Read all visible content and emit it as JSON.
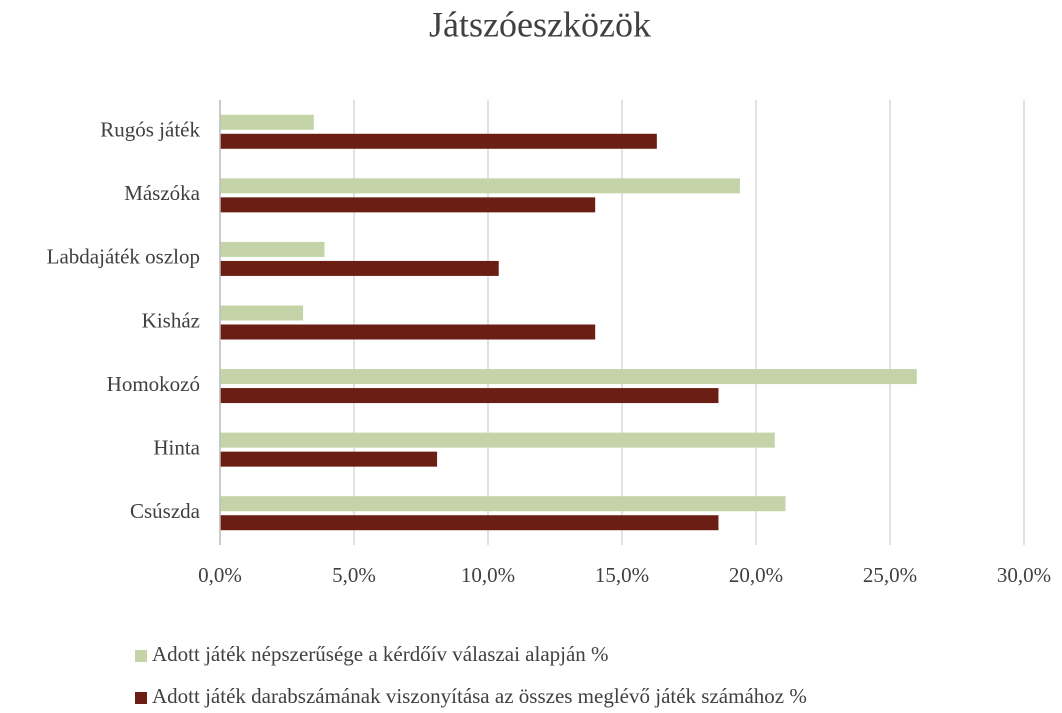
{
  "chart_data": {
    "type": "hbar",
    "title": "Játszóeszközök",
    "categories": [
      "Rugós játék",
      "Mászóka",
      "Labdajáték oszlop",
      "Kisház",
      "Homokozó",
      "Hinta",
      "Csúszda"
    ],
    "series": [
      {
        "name": "Adott játék népszerűsége a kérdőív válaszai alapján %",
        "color": "#c4d4a8",
        "values": [
          3.5,
          19.4,
          3.9,
          3.1,
          26.0,
          20.7,
          21.1
        ]
      },
      {
        "name": "Adott játék darabszámának viszonyítása az összes meglévő játék számához  %",
        "color": "#6b1f14",
        "values": [
          16.3,
          14.0,
          10.4,
          14.0,
          18.6,
          8.1,
          18.6
        ]
      }
    ],
    "xlim": [
      0,
      30
    ],
    "xticks": [
      {
        "value": 0,
        "label": "0,0%"
      },
      {
        "value": 5,
        "label": "5,0%"
      },
      {
        "value": 10,
        "label": "10,0%"
      },
      {
        "value": 15,
        "label": "15,0%"
      },
      {
        "value": 20,
        "label": "20,0%"
      },
      {
        "value": 25,
        "label": "25,0%"
      },
      {
        "value": 30,
        "label": "30,0%"
      }
    ],
    "grid": true,
    "legend": "bottom"
  }
}
